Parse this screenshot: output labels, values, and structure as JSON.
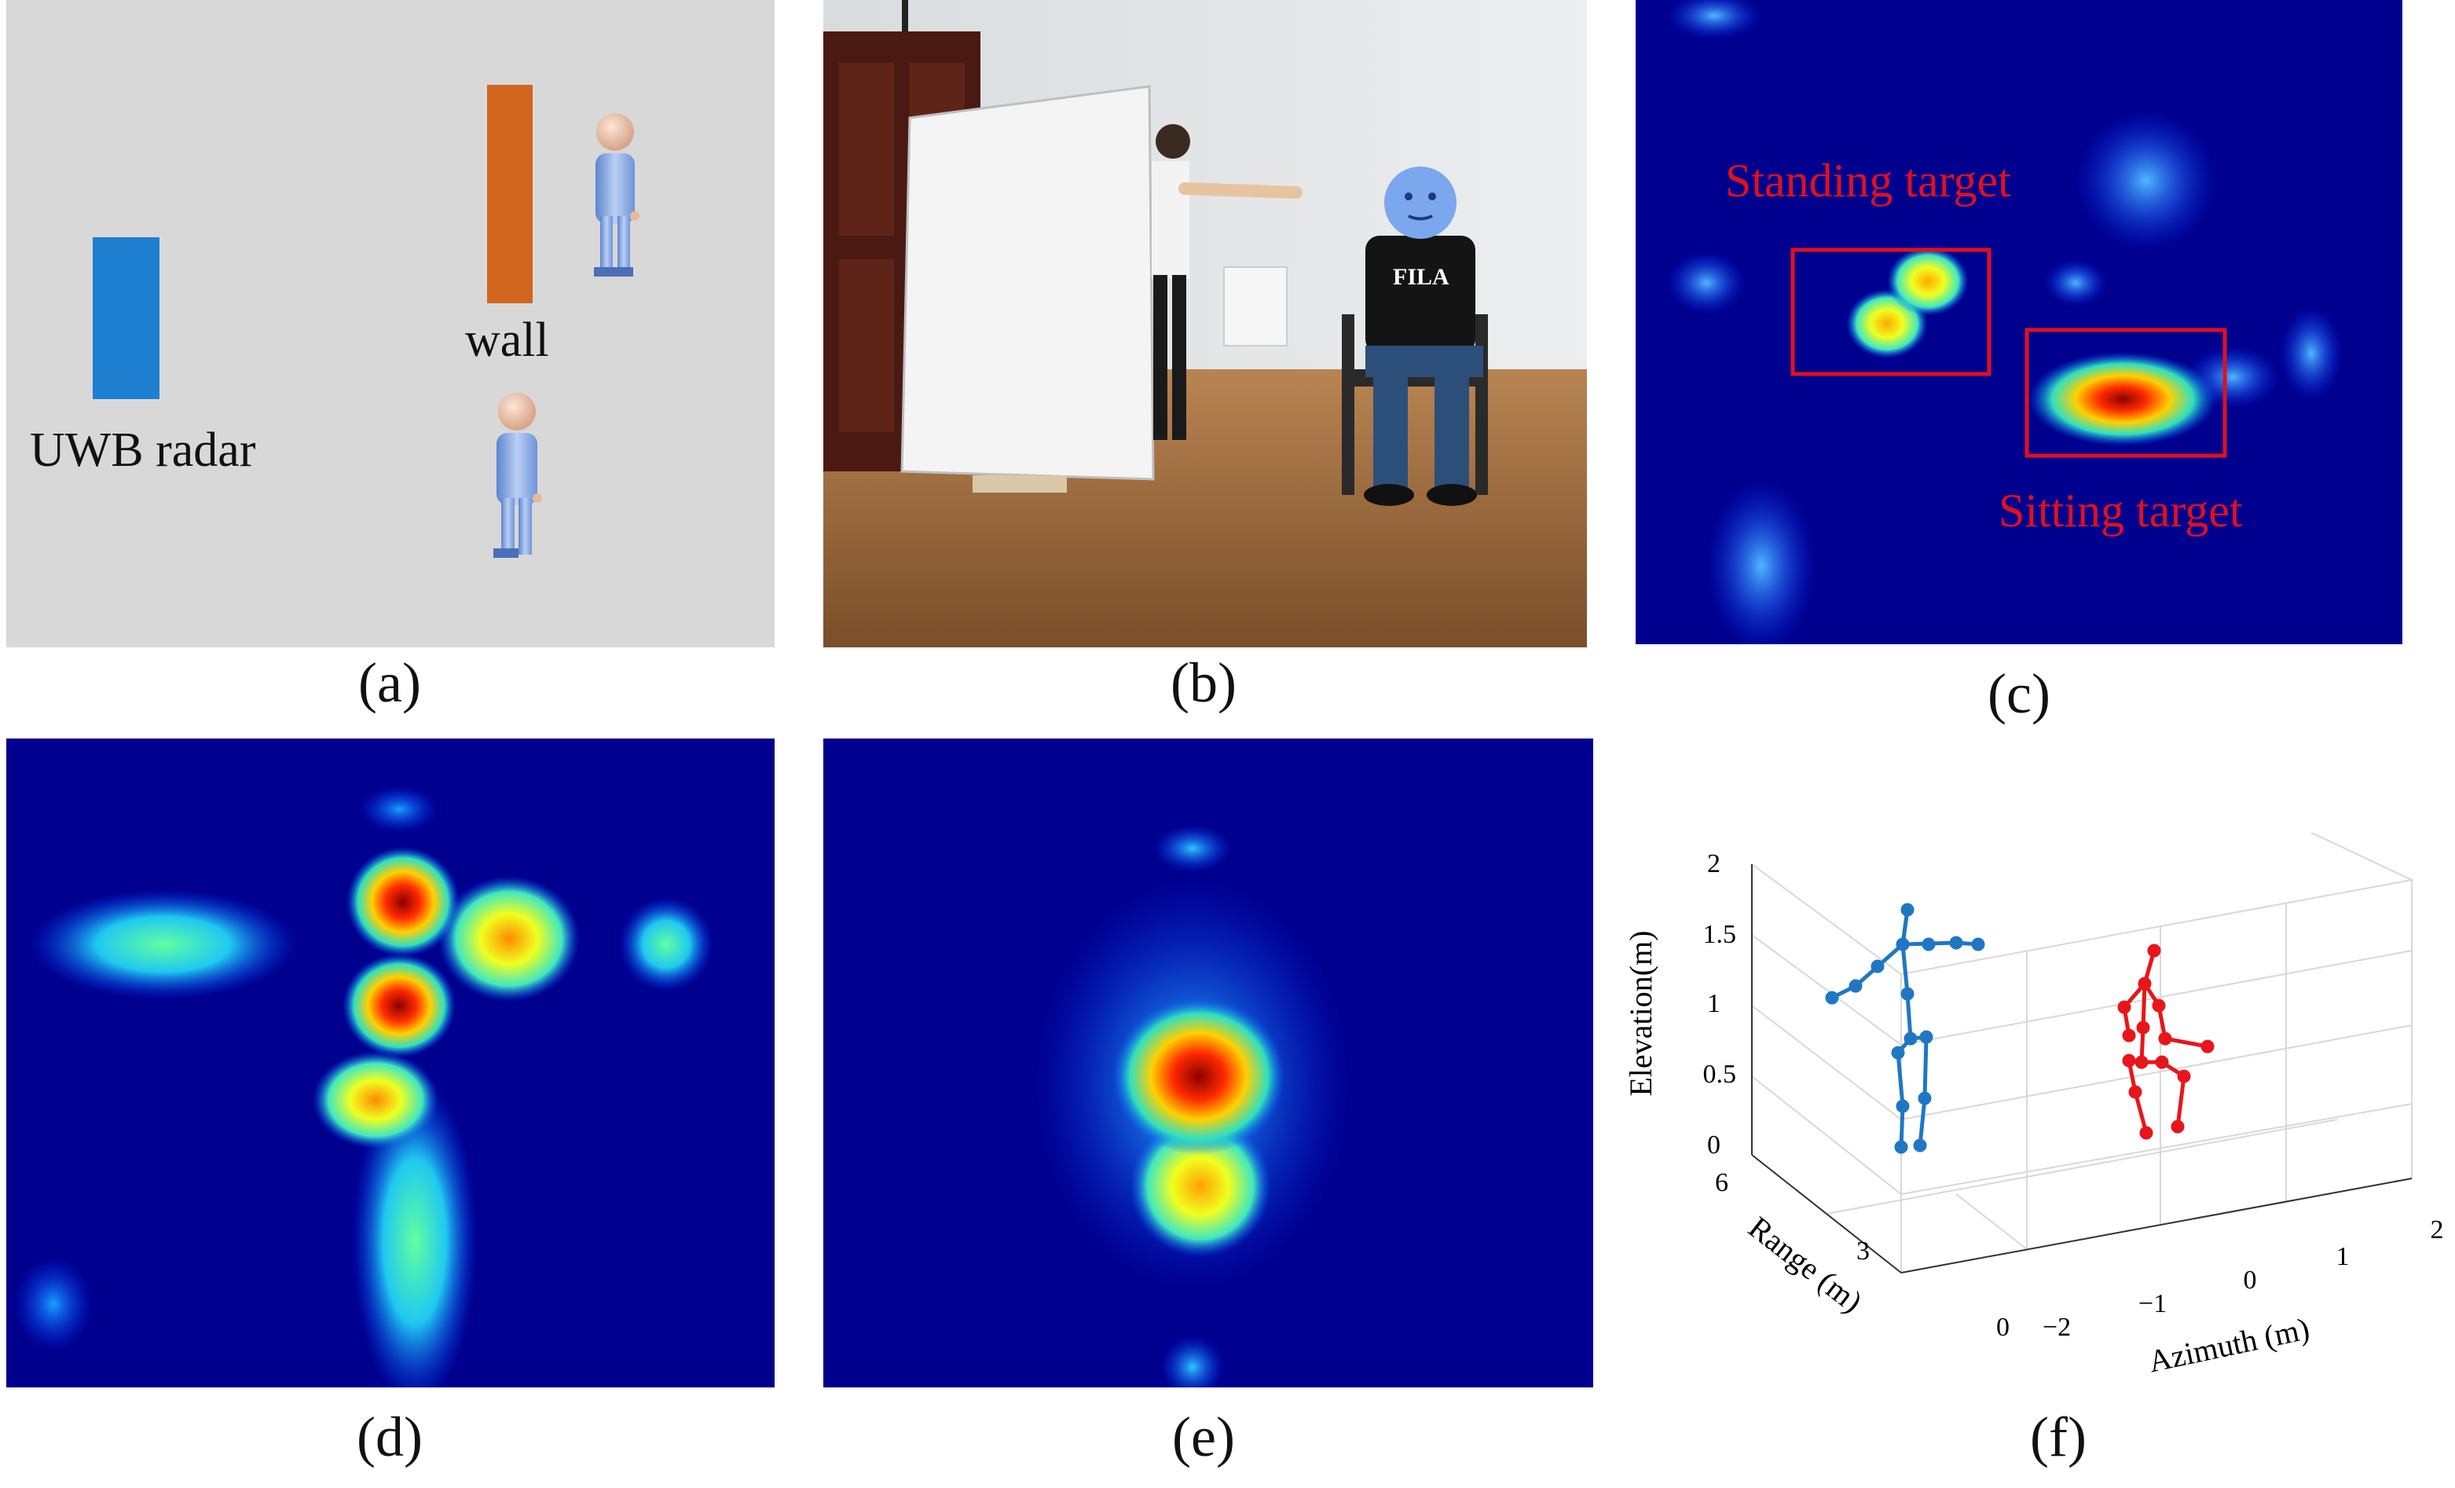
{
  "panels": {
    "a": {
      "caption": "(a)",
      "radar_label": "UWB radar",
      "wall_label": "wall",
      "colors": {
        "background": "#d8d8d8",
        "radar": "#1f7fd0",
        "wall": "#d2661f",
        "figure": "#8fb0e0"
      }
    },
    "b": {
      "caption": "(b)",
      "shirt_text": "FILA",
      "icons": [
        "door",
        "white-board",
        "standing-person",
        "sitting-person",
        "chair",
        "face-mask-icon"
      ]
    },
    "c": {
      "caption": "(c)",
      "standing_label": "Standing target",
      "sitting_label": "Sitting target",
      "colors": {
        "background": "#00008f",
        "annotation": "#e0101c"
      }
    },
    "d": {
      "caption": "(d)",
      "description_colors": {
        "background": "#00008f"
      }
    },
    "e": {
      "caption": "(e)",
      "description_colors": {
        "background": "#00008f"
      }
    },
    "f": {
      "caption": "(f)",
      "zlabel": "Elevation(m)",
      "ylabel": "Range (m)",
      "xlabel": "Azimuth (m)",
      "zticks": [
        "2",
        "1.5",
        "1",
        "0.5",
        "0"
      ],
      "yticks": [
        "6",
        "3",
        "0"
      ],
      "xticks": [
        "−2",
        "−1",
        "0",
        "1",
        "2"
      ],
      "colors": {
        "standing_skeleton": "#1f77c4",
        "sitting_skeleton": "#e8161a",
        "grid": "#d8d8d8"
      }
    }
  }
}
